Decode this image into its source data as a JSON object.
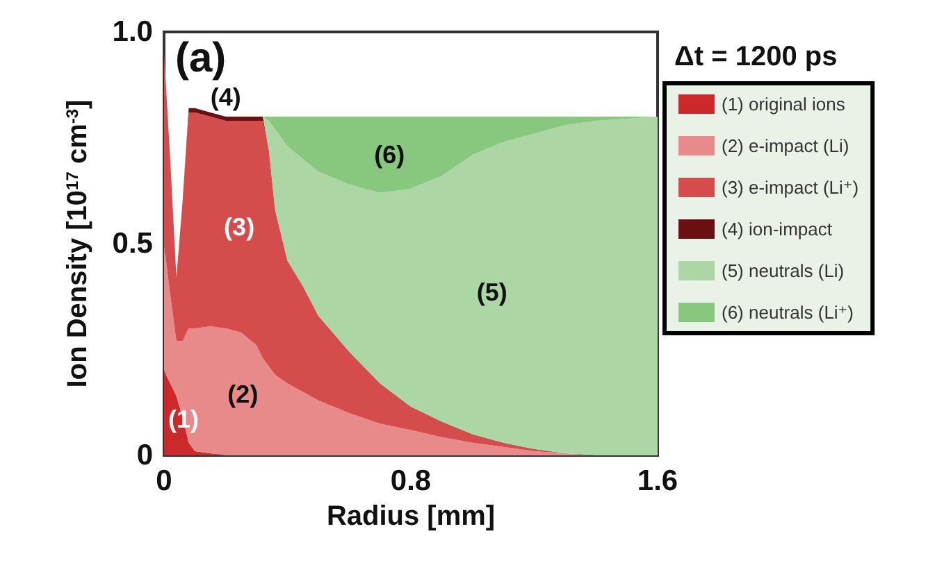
{
  "chart_data": {
    "type": "area",
    "stacked": true,
    "xlabel": "Radius [mm]",
    "ylabel": "Ion Density [10$^{17}$ cm$^{-3}$]",
    "x": [
      0,
      0.02,
      0.04,
      0.06,
      0.08,
      0.1,
      0.15,
      0.2,
      0.25,
      0.3,
      0.32,
      0.34,
      0.36,
      0.4,
      0.45,
      0.5,
      0.6,
      0.7,
      0.8,
      0.9,
      1.0,
      1.1,
      1.2,
      1.3,
      1.4,
      1.5,
      1.6
    ],
    "series": [
      {
        "name": "(1) original ions",
        "color": "#cc2a2a",
        "values": [
          0.2,
          0.17,
          0.14,
          0.09,
          0.03,
          0.01,
          0.005,
          0,
          null,
          null,
          null,
          null,
          null,
          null,
          null,
          null,
          null,
          null,
          null,
          null,
          null,
          null,
          null,
          null,
          null,
          null,
          null
        ]
      },
      {
        "name": "(2) e-impact (Li)",
        "color": "#e88a8a",
        "values": [
          0.3,
          0.21,
          0.13,
          0.18,
          0.27,
          0.29,
          0.3,
          0.3,
          0.29,
          0.26,
          0.23,
          0.21,
          0.19,
          0.17,
          0.15,
          0.13,
          0.1,
          0.075,
          0.06,
          0.043,
          0.03,
          0.02,
          0.01,
          0.005,
          0,
          null,
          null
        ]
      },
      {
        "name": "(3) e-impact (Li⁺)",
        "color": "#d44c4c",
        "values": [
          0.45,
          0.32,
          0.15,
          0.33,
          0.51,
          0.51,
          0.495,
          0.49,
          0.5,
          0.53,
          0.56,
          0.51,
          0.39,
          0.29,
          0.25,
          0.2,
          0.145,
          0.095,
          0.055,
          0.037,
          0.02,
          0.01,
          0.005,
          0,
          null,
          null,
          null
        ]
      },
      {
        "name": "(4) ion-impact",
        "color": "#6b1010",
        "values": [
          null,
          null,
          null,
          0,
          0.01,
          0.01,
          0.01,
          0.01,
          0.01,
          0.01,
          0.01,
          0,
          null,
          null,
          null,
          null,
          null,
          null,
          null,
          null,
          null,
          null,
          null,
          null,
          null,
          null,
          null
        ]
      },
      {
        "name": "(5) neutrals (Li)",
        "color": "#acd6a4",
        "values": [
          null,
          null,
          null,
          null,
          null,
          null,
          null,
          null,
          null,
          null,
          0,
          0.07,
          0.19,
          0.27,
          0.3,
          0.34,
          0.395,
          0.45,
          0.515,
          0.58,
          0.66,
          0.71,
          0.745,
          0.775,
          0.79,
          0.795,
          0.8
        ]
      },
      {
        "name": "(6) neutrals (Li⁺)",
        "color": "#88c87e",
        "values": [
          null,
          null,
          null,
          null,
          null,
          null,
          null,
          null,
          null,
          null,
          0,
          0.01,
          0.03,
          0.07,
          0.1,
          0.13,
          0.16,
          0.18,
          0.17,
          0.14,
          0.09,
          0.06,
          0.04,
          0.02,
          0.01,
          0.005,
          0
        ]
      }
    ],
    "xlim": [
      0,
      1.6
    ],
    "xticks": [
      0,
      0.8,
      1.6
    ],
    "ylim": [
      0,
      1
    ],
    "yticks": [
      0,
      0.5,
      {
        "value": 1,
        "label": "1.0"
      }
    ],
    "grid": false,
    "legend": "right",
    "annotations": [
      "(a)",
      "Δt = 1200 ps",
      "(1)",
      "(2)",
      "(3)",
      "(4)",
      "(5)",
      "(6)"
    ]
  }
}
